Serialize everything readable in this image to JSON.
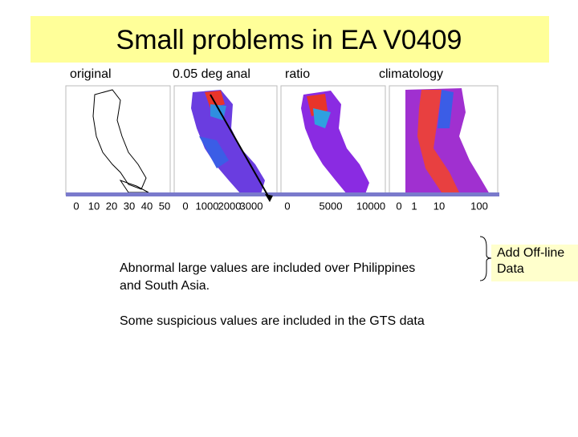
{
  "title": "Small problems in EA V0409",
  "panels": [
    {
      "label": "original",
      "scale": [
        "0",
        "10",
        "20",
        "30",
        "40",
        "50"
      ]
    },
    {
      "label": "0.05 deg anal",
      "scale": [
        "0",
        "1000",
        "2000",
        "3000"
      ]
    },
    {
      "label": "ratio",
      "scale": [
        "0",
        "5000",
        "10000"
      ]
    },
    {
      "label": "climatology",
      "scale": [
        "0",
        "1",
        "10",
        "100"
      ]
    }
  ],
  "notes": [
    [
      "Abnormal large values are included over Philippines",
      "and South Asia."
    ],
    [
      "Some suspicious values are included in the GTS data"
    ]
  ],
  "callout": [
    "Add Off-line",
    "Data"
  ]
}
